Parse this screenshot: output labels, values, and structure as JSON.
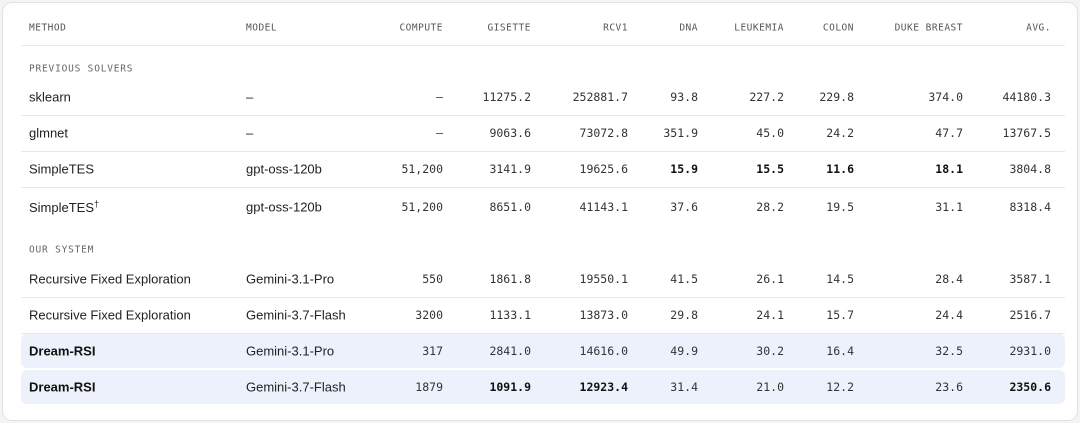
{
  "table": {
    "columns": [
      "METHOD",
      "MODEL",
      "COMPUTE",
      "GISETTE",
      "RCV1",
      "DNA",
      "LEUKEMIA",
      "COLON",
      "DUKE BREAST",
      "AVG."
    ],
    "sections": [
      {
        "label": "PREVIOUS SOLVERS",
        "rows": [
          {
            "cells": [
              "sklearn",
              "–",
              "–",
              "11275.2",
              "252881.7",
              "93.8",
              "227.2",
              "229.8",
              "374.0",
              "44180.3"
            ],
            "bold": []
          },
          {
            "cells": [
              "glmnet",
              "–",
              "–",
              "9063.6",
              "73072.8",
              "351.9",
              "45.0",
              "24.2",
              "47.7",
              "13767.5"
            ],
            "bold": []
          },
          {
            "cells": [
              "SimpleTES",
              "gpt-oss-120b",
              "51,200",
              "3141.9",
              "19625.6",
              "15.9",
              "15.5",
              "11.6",
              "18.1",
              "3804.8"
            ],
            "bold": [
              5,
              6,
              7,
              8
            ]
          },
          {
            "cells": [
              "SimpleTES",
              "gpt-oss-120b",
              "51,200",
              "8651.0",
              "41143.1",
              "37.6",
              "28.2",
              "19.5",
              "31.1",
              "8318.4"
            ],
            "sup": "†",
            "bold": []
          }
        ]
      },
      {
        "label": "OUR SYSTEM",
        "rows": [
          {
            "cells": [
              "Recursive Fixed Exploration",
              "Gemini-3.1-Pro",
              "550",
              "1861.8",
              "19550.1",
              "41.5",
              "26.1",
              "14.5",
              "28.4",
              "3587.1"
            ],
            "bold": []
          },
          {
            "cells": [
              "Recursive Fixed Exploration",
              "Gemini-3.7-Flash",
              "3200",
              "1133.1",
              "13873.0",
              "29.8",
              "24.1",
              "15.7",
              "24.4",
              "2516.7"
            ],
            "bold": []
          },
          {
            "cells": [
              "Dream-RSI",
              "Gemini-3.1-Pro",
              "317",
              "2841.0",
              "14616.0",
              "49.9",
              "30.2",
              "16.4",
              "32.5",
              "2931.0"
            ],
            "bold": [
              0
            ],
            "highlight": true
          },
          {
            "cells": [
              "Dream-RSI",
              "Gemini-3.7-Flash",
              "1879",
              "1091.9",
              "12923.4",
              "31.4",
              "21.0",
              "12.2",
              "23.6",
              "2350.6"
            ],
            "bold": [
              0,
              3,
              4,
              9
            ],
            "highlight": true
          }
        ]
      }
    ]
  }
}
